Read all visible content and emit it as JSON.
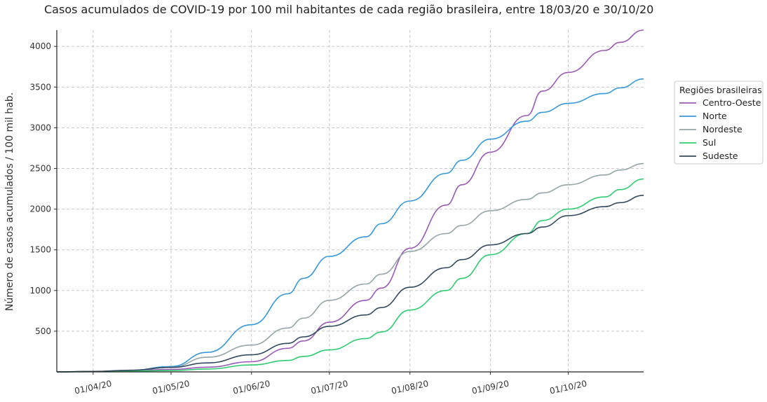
{
  "chart_data": {
    "type": "line",
    "title": "Casos acumulados de COVID-19 por 100 mil habitantes de cada região brasileira, entre 18/03/20 e 30/10/20",
    "xlabel": "",
    "ylabel": "Número de casos acumulados / 100 mil hab.",
    "x_range": [
      "2020-03-18",
      "2020-10-30"
    ],
    "ylim": [
      0,
      4200
    ],
    "y_ticks": [
      500,
      1000,
      1500,
      2000,
      2500,
      3000,
      3500,
      4000
    ],
    "x_ticks": [
      {
        "date": "2020-04-01",
        "label": "01/04/20"
      },
      {
        "date": "2020-05-01",
        "label": "01/05/20"
      },
      {
        "date": "2020-06-01",
        "label": "01/06/20"
      },
      {
        "date": "2020-07-01",
        "label": "01/07/20"
      },
      {
        "date": "2020-08-01",
        "label": "01/08/20"
      },
      {
        "date": "2020-09-01",
        "label": "01/09/20"
      },
      {
        "date": "2020-10-01",
        "label": "01/10/20"
      }
    ],
    "grid": true,
    "legend_title": "Regiões brasileiras",
    "legend_position": "right",
    "series": [
      {
        "name": "Centro-Oeste",
        "color": "#9b59b6",
        "points": [
          [
            "2020-03-18",
            0
          ],
          [
            "2020-04-01",
            5
          ],
          [
            "2020-04-15",
            14
          ],
          [
            "2020-05-01",
            30
          ],
          [
            "2020-05-15",
            58
          ],
          [
            "2020-06-01",
            125
          ],
          [
            "2020-06-15",
            290
          ],
          [
            "2020-06-21",
            380
          ],
          [
            "2020-07-01",
            610
          ],
          [
            "2020-07-15",
            880
          ],
          [
            "2020-07-21",
            1030
          ],
          [
            "2020-08-01",
            1520
          ],
          [
            "2020-08-15",
            2050
          ],
          [
            "2020-08-21",
            2300
          ],
          [
            "2020-09-01",
            2700
          ],
          [
            "2020-09-15",
            3150
          ],
          [
            "2020-09-21",
            3450
          ],
          [
            "2020-10-01",
            3680
          ],
          [
            "2020-10-15",
            3950
          ],
          [
            "2020-10-21",
            4050
          ],
          [
            "2020-10-30",
            4200
          ]
        ]
      },
      {
        "name": "Norte",
        "color": "#3498db",
        "points": [
          [
            "2020-03-18",
            0
          ],
          [
            "2020-04-01",
            4
          ],
          [
            "2020-04-15",
            18
          ],
          [
            "2020-05-01",
            65
          ],
          [
            "2020-05-15",
            240
          ],
          [
            "2020-06-01",
            580
          ],
          [
            "2020-06-15",
            960
          ],
          [
            "2020-06-21",
            1150
          ],
          [
            "2020-07-01",
            1420
          ],
          [
            "2020-07-15",
            1660
          ],
          [
            "2020-07-21",
            1820
          ],
          [
            "2020-08-01",
            2100
          ],
          [
            "2020-08-15",
            2440
          ],
          [
            "2020-08-21",
            2600
          ],
          [
            "2020-09-01",
            2860
          ],
          [
            "2020-09-15",
            3080
          ],
          [
            "2020-09-21",
            3190
          ],
          [
            "2020-10-01",
            3300
          ],
          [
            "2020-10-15",
            3420
          ],
          [
            "2020-10-21",
            3490
          ],
          [
            "2020-10-30",
            3600
          ]
        ]
      },
      {
        "name": "Nordeste",
        "color": "#95a5a6",
        "points": [
          [
            "2020-03-18",
            0
          ],
          [
            "2020-04-01",
            4
          ],
          [
            "2020-04-15",
            15
          ],
          [
            "2020-05-01",
            55
          ],
          [
            "2020-05-15",
            180
          ],
          [
            "2020-06-01",
            330
          ],
          [
            "2020-06-15",
            540
          ],
          [
            "2020-06-21",
            660
          ],
          [
            "2020-07-01",
            880
          ],
          [
            "2020-07-15",
            1080
          ],
          [
            "2020-07-21",
            1200
          ],
          [
            "2020-08-01",
            1480
          ],
          [
            "2020-08-15",
            1700
          ],
          [
            "2020-08-21",
            1800
          ],
          [
            "2020-09-01",
            1980
          ],
          [
            "2020-09-15",
            2120
          ],
          [
            "2020-09-21",
            2200
          ],
          [
            "2020-10-01",
            2300
          ],
          [
            "2020-10-15",
            2420
          ],
          [
            "2020-10-21",
            2480
          ],
          [
            "2020-10-30",
            2560
          ]
        ]
      },
      {
        "name": "Sul",
        "color": "#2ecc71",
        "points": [
          [
            "2020-03-18",
            0
          ],
          [
            "2020-04-01",
            3
          ],
          [
            "2020-04-15",
            8
          ],
          [
            "2020-05-01",
            16
          ],
          [
            "2020-05-15",
            35
          ],
          [
            "2020-06-01",
            85
          ],
          [
            "2020-06-15",
            140
          ],
          [
            "2020-06-21",
            190
          ],
          [
            "2020-07-01",
            270
          ],
          [
            "2020-07-15",
            410
          ],
          [
            "2020-07-21",
            490
          ],
          [
            "2020-08-01",
            760
          ],
          [
            "2020-08-15",
            1000
          ],
          [
            "2020-08-21",
            1150
          ],
          [
            "2020-09-01",
            1440
          ],
          [
            "2020-09-15",
            1700
          ],
          [
            "2020-09-21",
            1860
          ],
          [
            "2020-10-01",
            2000
          ],
          [
            "2020-10-15",
            2150
          ],
          [
            "2020-10-21",
            2240
          ],
          [
            "2020-10-30",
            2370
          ]
        ]
      },
      {
        "name": "Sudeste",
        "color": "#34495e",
        "points": [
          [
            "2020-03-18",
            0
          ],
          [
            "2020-04-01",
            6
          ],
          [
            "2020-04-15",
            20
          ],
          [
            "2020-05-01",
            55
          ],
          [
            "2020-05-15",
            110
          ],
          [
            "2020-06-01",
            210
          ],
          [
            "2020-06-15",
            350
          ],
          [
            "2020-06-21",
            430
          ],
          [
            "2020-07-01",
            560
          ],
          [
            "2020-07-15",
            700
          ],
          [
            "2020-07-21",
            790
          ],
          [
            "2020-08-01",
            1040
          ],
          [
            "2020-08-15",
            1280
          ],
          [
            "2020-08-21",
            1380
          ],
          [
            "2020-09-01",
            1560
          ],
          [
            "2020-09-15",
            1700
          ],
          [
            "2020-09-21",
            1780
          ],
          [
            "2020-10-01",
            1920
          ],
          [
            "2020-10-15",
            2030
          ],
          [
            "2020-10-21",
            2080
          ],
          [
            "2020-10-30",
            2170
          ]
        ]
      }
    ]
  }
}
